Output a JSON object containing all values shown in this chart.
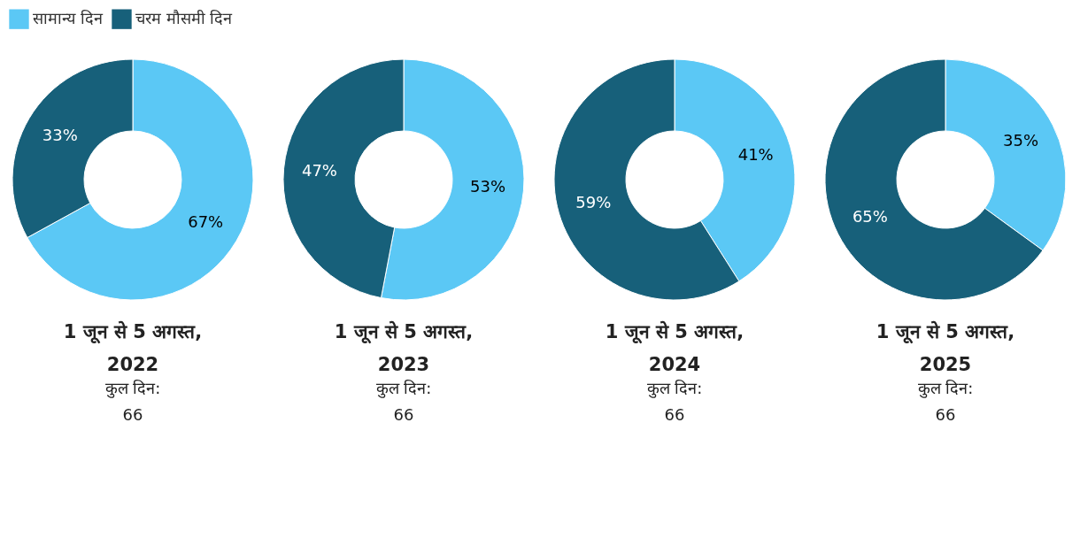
{
  "chart_data": [
    {
      "type": "donut",
      "title": "1 जून से 5 अगस्त, 2022",
      "subtitle": "कुल दिन:",
      "annotations": [
        "66"
      ],
      "categories": [
        "सामान्य दिन",
        "चरम मौसमी दिन"
      ],
      "values": [
        67,
        33
      ],
      "value_labels": [
        "67%",
        "33%"
      ],
      "colors": [
        "#5bc8f5",
        "#17607a"
      ],
      "legend": "top left"
    },
    {
      "type": "donut",
      "title": "1 जून से 5 अगस्त, 2023",
      "subtitle": "कुल दिन:",
      "annotations": [
        "66"
      ],
      "categories": [
        null,
        null
      ],
      "values": [
        53,
        47
      ],
      "value_labels": [
        "53%",
        "47%"
      ],
      "colors": [
        "#5bc8f5",
        "#17607a"
      ]
    },
    {
      "type": "donut",
      "title": "1 जून से 5 अगस्त, 2024",
      "subtitle": "कुल दिन:",
      "annotations": [
        "66"
      ],
      "categories": [
        null,
        null
      ],
      "values": [
        41,
        59
      ],
      "value_labels": [
        "41%",
        "59%"
      ],
      "colors": [
        "#5bc8f5",
        "#17607a"
      ]
    },
    {
      "type": "donut",
      "title": "1 जून से 5 अगस्त, 2025",
      "subtitle": "कुल दिन:",
      "annotations": [
        "66"
      ],
      "categories": [
        null,
        null
      ],
      "values": [
        35,
        65
      ],
      "value_labels": [
        "35%",
        "65%"
      ],
      "colors": [
        "#5bc8f5",
        "#17607a"
      ]
    }
  ]
}
